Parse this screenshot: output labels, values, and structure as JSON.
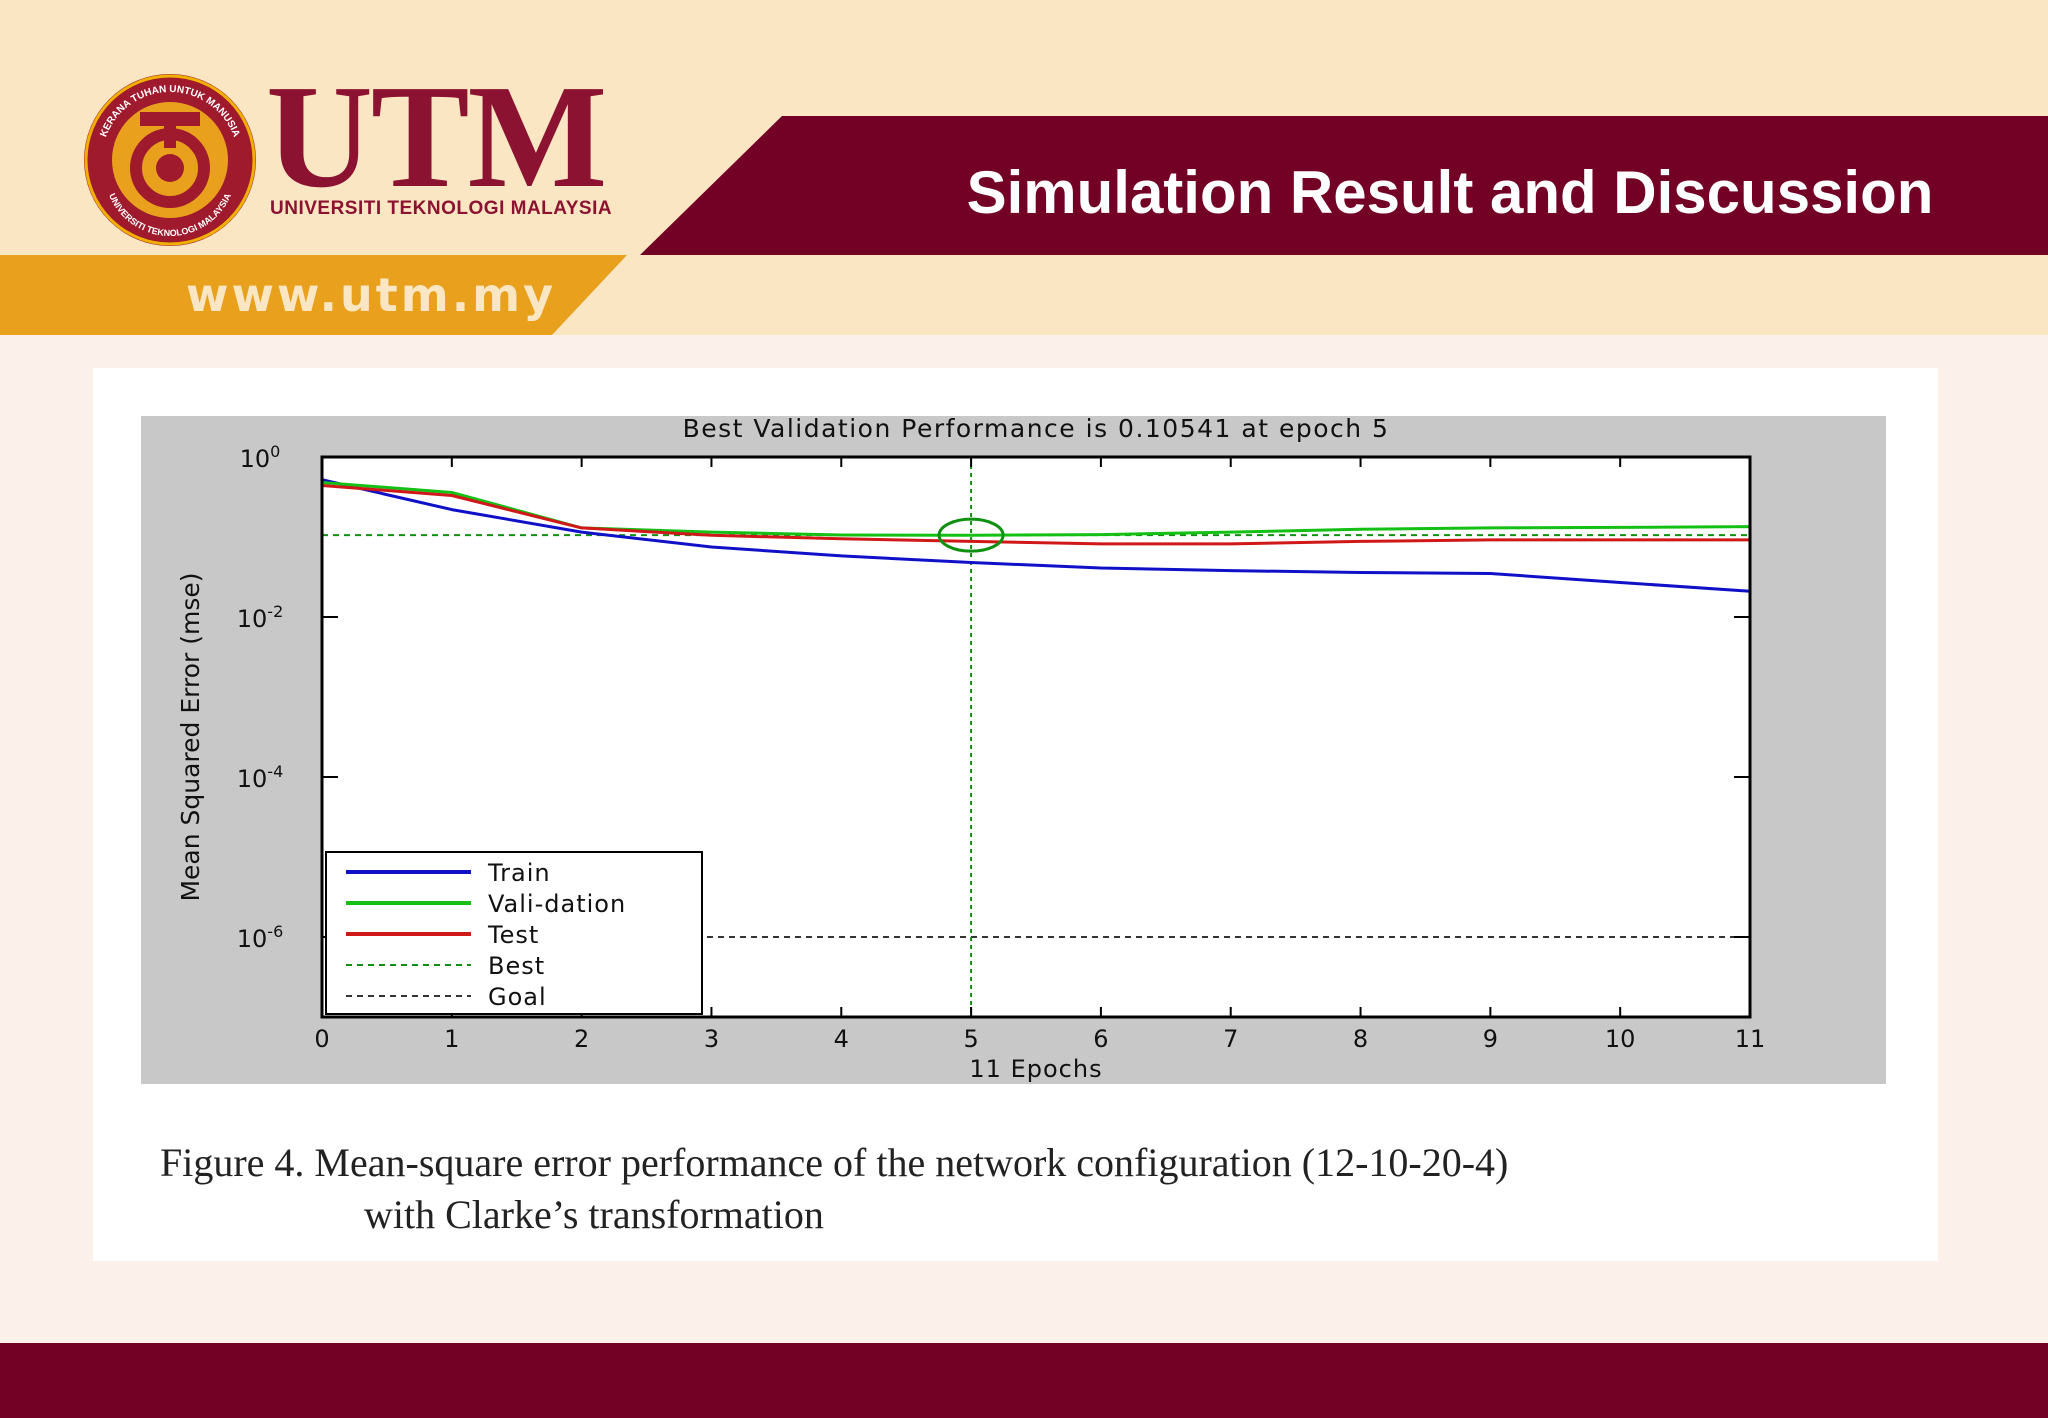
{
  "slide": {
    "title": "Simulation Result and Discussion",
    "url": "www.utm.my",
    "brand": "UTM",
    "brand_sub": "UNIVERSITI TEKNOLOGI MALAYSIA",
    "seal_text_top": "KERANA TUHAN UNTUK MANUSIA",
    "seal_text_bottom": "UNIVERSITI TEKNOLOGI MALAYSIA",
    "caption_line1": "Figure 4. Mean-square error performance of the network configuration (12-10-20-4)",
    "caption_line2": "with Clarke’s transformation"
  },
  "colors": {
    "maroon": "#730126",
    "gold": "#e8a01d",
    "cream": "#fbe6c4",
    "train": "#1010c8",
    "validation": "#14c014",
    "test": "#d01818",
    "best": "#109010"
  },
  "chart_data": {
    "type": "line",
    "title": "Best Validation Performance is 0.10541 at epoch 5",
    "xlabel": "11 Epochs",
    "ylabel": "Mean Squared Error  (mse)",
    "y_scale": "log",
    "xlim": [
      0,
      11
    ],
    "ylim": [
      1e-07,
      1
    ],
    "x_ticks": [
      "0",
      "1",
      "2",
      "3",
      "4",
      "5",
      "6",
      "7",
      "8",
      "9",
      "10",
      "11"
    ],
    "y_ticks": [
      {
        "value": 1,
        "base": "10",
        "exp": "0"
      },
      {
        "value": 0.01,
        "base": "10",
        "exp": "-2"
      },
      {
        "value": 0.0001,
        "base": "10",
        "exp": "-4"
      },
      {
        "value": 1e-06,
        "base": "10",
        "exp": "-6"
      }
    ],
    "x": [
      0,
      1,
      2,
      3,
      4,
      5,
      6,
      7,
      8,
      9,
      10,
      11
    ],
    "series": [
      {
        "name": "Train",
        "color": "#1010c8",
        "values": [
          0.52,
          0.22,
          0.115,
          0.075,
          0.058,
          0.048,
          0.041,
          0.038,
          0.036,
          0.035,
          0.027,
          0.021
        ]
      },
      {
        "name": "Vali-dation",
        "color": "#14c014",
        "values": [
          0.48,
          0.36,
          0.13,
          0.115,
          0.106,
          0.10541,
          0.107,
          0.115,
          0.125,
          0.13,
          0.132,
          0.135
        ]
      },
      {
        "name": "Test",
        "color": "#d01818",
        "values": [
          0.44,
          0.33,
          0.13,
          0.105,
          0.095,
          0.088,
          0.082,
          0.082,
          0.088,
          0.092,
          0.092,
          0.092
        ]
      }
    ],
    "best": {
      "name": "Best",
      "epoch": 5,
      "value": 0.10541,
      "color": "#109010"
    },
    "goal": {
      "name": "Goal",
      "value": 1e-06,
      "color": "#333333"
    },
    "legend": {
      "placement": "bottom-left",
      "entries": [
        "Train",
        "Vali-dation",
        "Test",
        "Best",
        "Goal"
      ]
    },
    "grid": false
  }
}
